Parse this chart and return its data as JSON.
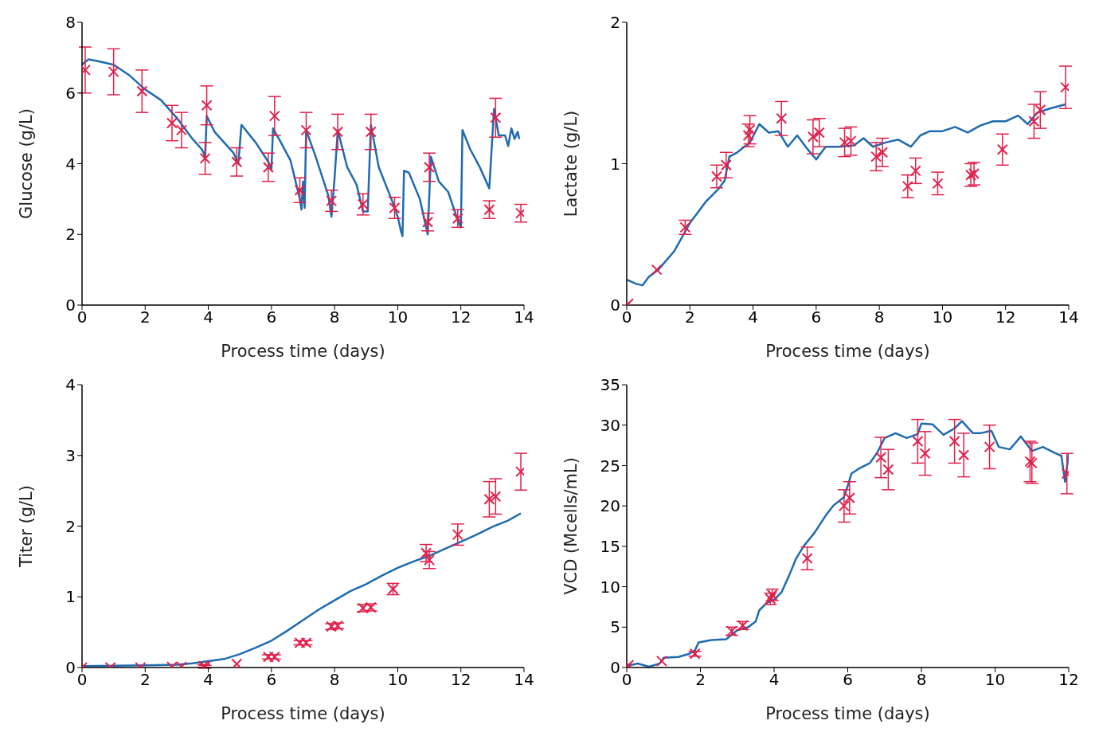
{
  "chart_data": [
    {
      "type": "line",
      "xlabel": "Process time (days)",
      "ylabel": "Glucose (g/L)",
      "xlim": [
        0,
        14
      ],
      "xticks": [
        0,
        2,
        4,
        6,
        8,
        10,
        12,
        14
      ],
      "ylim": [
        0,
        8
      ],
      "yticks": [
        0,
        2,
        4,
        6,
        8
      ],
      "series": [
        {
          "type": "line",
          "color": "#1f6bb0",
          "marker": "none",
          "x": [
            0,
            0.2,
            0.5,
            1,
            1.5,
            2,
            2.5,
            3,
            3.5,
            3.8,
            3.9,
            3.95,
            4.2,
            4.8,
            4.95,
            5.05,
            5.5,
            5.9,
            6.0,
            6.05,
            6.3,
            6.6,
            6.9,
            6.95,
            7.0,
            7.05,
            7.1,
            7.4,
            7.8,
            7.9,
            8.0,
            8.1,
            8.4,
            8.7,
            8.9,
            9.05,
            9.15,
            9.4,
            9.8,
            10,
            10.1,
            10.15,
            10.2,
            10.35,
            10.7,
            10.9,
            10.95,
            11.05,
            11.3,
            11.6,
            11.9,
            12.0,
            12.05,
            12.3,
            12.6,
            12.85,
            12.9,
            13.05,
            13.2,
            13.4,
            13.5,
            13.6,
            13.7,
            13.8,
            13.85
          ],
          "values": [
            6.8,
            6.95,
            6.9,
            6.8,
            6.5,
            6.1,
            5.8,
            5.3,
            4.7,
            4.4,
            4.2,
            5.35,
            4.9,
            4.3,
            4.0,
            5.1,
            4.6,
            4.05,
            3.85,
            5.0,
            4.6,
            4.1,
            3.0,
            2.7,
            3.5,
            2.75,
            4.95,
            4.2,
            3.1,
            2.5,
            3.6,
            4.95,
            3.9,
            3.4,
            2.65,
            2.65,
            5.1,
            3.9,
            3.0,
            2.5,
            2.1,
            1.95,
            3.8,
            3.75,
            3.0,
            2.2,
            2.0,
            4.2,
            3.5,
            3.2,
            2.4,
            2.2,
            4.95,
            4.4,
            3.9,
            3.4,
            3.3,
            5.55,
            4.8,
            4.8,
            4.5,
            5.0,
            4.7,
            4.9,
            4.7
          ]
        },
        {
          "type": "scatter",
          "color": "#e0204a",
          "marker": "cross",
          "x": [
            0.1,
            1,
            1.9,
            2.85,
            3.15,
            3.9,
            3.95,
            4.9,
            5.9,
            6.1,
            6.9,
            7.1,
            7.9,
            8.1,
            8.9,
            9.15,
            9.9,
            10.95,
            11,
            11.9,
            12.9,
            13.1,
            13.9
          ],
          "values": [
            6.65,
            6.6,
            6.05,
            5.15,
            4.95,
            4.15,
            5.65,
            4.05,
            3.9,
            5.35,
            3.25,
            4.95,
            2.95,
            4.9,
            2.85,
            4.9,
            2.75,
            2.35,
            3.9,
            2.45,
            2.7,
            5.3,
            2.6
          ],
          "errors": [
            0.65,
            0.65,
            0.6,
            0.5,
            0.5,
            0.45,
            0.55,
            0.4,
            0.4,
            0.55,
            0.35,
            0.5,
            0.3,
            0.5,
            0.3,
            0.5,
            0.3,
            0.25,
            0.4,
            0.25,
            0.25,
            0.55,
            0.25
          ]
        }
      ]
    },
    {
      "type": "line",
      "xlabel": "Process time (days)",
      "ylabel": "Lactate (g/L)",
      "xlim": [
        0,
        14
      ],
      "xticks": [
        0,
        2,
        4,
        6,
        8,
        10,
        12,
        14
      ],
      "ylim": [
        0,
        2
      ],
      "yticks": [
        0,
        1,
        2
      ],
      "series": [
        {
          "type": "line",
          "color": "#1f6bb0",
          "marker": "none",
          "x": [
            0,
            0.3,
            0.5,
            0.7,
            1,
            1.5,
            2,
            2.5,
            2.9,
            3.1,
            3.25,
            3.5,
            3.9,
            4.2,
            4.5,
            4.8,
            5.1,
            5.4,
            5.7,
            6.0,
            6.3,
            6.7,
            7.2,
            7.5,
            7.8,
            8.2,
            8.6,
            9.0,
            9.3,
            9.6,
            10,
            10.4,
            10.8,
            11.2,
            11.6,
            12,
            12.4,
            12.7,
            13,
            13.4,
            13.9
          ],
          "values": [
            0.18,
            0.15,
            0.14,
            0.2,
            0.25,
            0.38,
            0.58,
            0.73,
            0.82,
            0.88,
            1.05,
            1.08,
            1.15,
            1.28,
            1.22,
            1.23,
            1.12,
            1.2,
            1.11,
            1.03,
            1.12,
            1.12,
            1.13,
            1.18,
            1.12,
            1.15,
            1.17,
            1.12,
            1.2,
            1.23,
            1.23,
            1.26,
            1.22,
            1.27,
            1.3,
            1.3,
            1.34,
            1.28,
            1.36,
            1.39,
            1.42
          ]
        },
        {
          "type": "scatter",
          "color": "#e0204a",
          "marker": "cross",
          "x": [
            0.05,
            0.95,
            1.85,
            2.85,
            3.15,
            3.85,
            3.9,
            4.9,
            5.9,
            6.1,
            6.9,
            7.1,
            7.9,
            8.1,
            8.9,
            9.15,
            9.85,
            10.9,
            11,
            11.9,
            12.9,
            13.1,
            13.9
          ],
          "values": [
            0.01,
            0.25,
            0.55,
            0.91,
            0.99,
            1.2,
            1.24,
            1.32,
            1.19,
            1.22,
            1.15,
            1.16,
            1.05,
            1.08,
            0.84,
            0.95,
            0.86,
            0.92,
            0.93,
            1.1,
            1.3,
            1.38,
            1.54
          ],
          "errors": [
            null,
            null,
            0.05,
            0.08,
            0.09,
            0.08,
            0.1,
            0.12,
            0.12,
            0.1,
            0.1,
            0.1,
            0.1,
            0.1,
            0.08,
            0.09,
            0.08,
            0.08,
            0.08,
            0.11,
            0.12,
            0.13,
            0.15
          ]
        }
      ]
    },
    {
      "type": "line",
      "xlabel": "Process time (days)",
      "ylabel": "Titer (g/L)",
      "xlim": [
        0,
        14
      ],
      "xticks": [
        0,
        2,
        4,
        6,
        8,
        10,
        12,
        14
      ],
      "ylim": [
        0,
        4
      ],
      "yticks": [
        0,
        1,
        2,
        3,
        4
      ],
      "series": [
        {
          "type": "line",
          "color": "#1f6bb0",
          "marker": "none",
          "x": [
            0,
            2,
            3,
            3.5,
            4,
            4.5,
            5,
            5.5,
            6,
            6.5,
            7,
            7.5,
            8,
            8.5,
            9,
            9.5,
            10,
            10.5,
            11,
            11.5,
            12,
            12.5,
            13,
            13.5,
            13.9
          ],
          "values": [
            0.02,
            0.03,
            0.04,
            0.06,
            0.09,
            0.12,
            0.19,
            0.28,
            0.38,
            0.52,
            0.67,
            0.82,
            0.95,
            1.08,
            1.18,
            1.3,
            1.41,
            1.5,
            1.58,
            1.68,
            1.78,
            1.88,
            1.99,
            2.08,
            2.18
          ]
        },
        {
          "type": "scatter",
          "color": "#e0204a",
          "marker": "cross",
          "x": [
            0,
            0.9,
            1.85,
            2.85,
            3.15,
            3.85,
            3.9,
            4.9,
            5.9,
            6.1,
            6.9,
            7.1,
            7.9,
            8.1,
            8.9,
            9.15,
            9.85,
            10.9,
            11,
            11.9,
            12.9,
            13.1,
            13.9
          ],
          "values": [
            0,
            0,
            0,
            0.01,
            0.01,
            0.02,
            0.01,
            0.05,
            0.15,
            0.15,
            0.35,
            0.35,
            0.58,
            0.59,
            0.84,
            0.85,
            1.11,
            1.62,
            1.52,
            1.88,
            2.38,
            2.42,
            2.77
          ],
          "errors": [
            null,
            null,
            null,
            null,
            null,
            0.02,
            0.02,
            null,
            0.03,
            0.03,
            0.03,
            0.03,
            0.04,
            0.04,
            0.05,
            0.05,
            0.08,
            0.12,
            0.12,
            0.15,
            0.25,
            0.25,
            0.26
          ]
        }
      ]
    },
    {
      "type": "line",
      "xlabel": "Process time (days)",
      "ylabel": "VCD (Mcells/mL)",
      "xlim": [
        0,
        12
      ],
      "xticks": [
        0,
        2,
        4,
        6,
        8,
        10,
        12
      ],
      "ylim": [
        0,
        35
      ],
      "yticks": [
        0,
        5,
        10,
        15,
        20,
        25,
        30,
        35
      ],
      "series": [
        {
          "type": "line",
          "color": "#1f6bb0",
          "marker": "none",
          "x": [
            0,
            0.3,
            0.6,
            0.9,
            1,
            1.4,
            1.7,
            1.85,
            1.95,
            2.3,
            2.7,
            3.0,
            3.3,
            3.5,
            3.6,
            3.8,
            4.0,
            4.2,
            4.4,
            4.6,
            4.8,
            5.1,
            5.4,
            5.6,
            5.9,
            6.0,
            6.1,
            6.3,
            6.6,
            6.8,
            7.0,
            7.3,
            7.6,
            7.9,
            8.0,
            8.3,
            8.6,
            8.9,
            9.1,
            9.4,
            9.6,
            9.9,
            10.1,
            10.4,
            10.7,
            11.0,
            11.3,
            11.6,
            11.8,
            11.9,
            12.0
          ],
          "values": [
            0.2,
            0.5,
            0.1,
            0.5,
            1.2,
            1.3,
            1.7,
            2.1,
            3.1,
            3.4,
            3.5,
            4.6,
            5.0,
            5.7,
            7.1,
            8.0,
            8.4,
            9.3,
            11.3,
            13.5,
            15.0,
            16.7,
            18.8,
            20.0,
            21.1,
            22.5,
            24.0,
            24.6,
            25.3,
            26.6,
            28.4,
            29.0,
            28.4,
            28.9,
            30.2,
            30.1,
            28.8,
            29.6,
            30.5,
            29.0,
            29.0,
            29.3,
            27.3,
            27.0,
            28.6,
            26.8,
            27.3,
            26.6,
            26.2,
            23.0,
            26.5
          ]
        },
        {
          "type": "scatter",
          "color": "#e0204a",
          "marker": "cross",
          "x": [
            0.05,
            0.95,
            1.85,
            2.85,
            3.15,
            3.9,
            3.95,
            4.9,
            5.9,
            6.05,
            6.9,
            7.1,
            7.9,
            8.1,
            8.9,
            9.15,
            9.85,
            10.95,
            11,
            11.95
          ],
          "values": [
            0.3,
            0.8,
            1.7,
            4.5,
            5.2,
            8.5,
            9,
            13.5,
            20,
            21,
            26,
            24.5,
            28,
            26.5,
            28,
            26.3,
            27.3,
            25.5,
            25.3,
            24
          ],
          "errors": [
            null,
            null,
            0.3,
            0.5,
            0.5,
            0.7,
            0.7,
            1.4,
            2,
            2,
            2.5,
            2.5,
            2.7,
            2.7,
            2.7,
            2.7,
            2.7,
            2.5,
            2.5,
            2.5
          ]
        }
      ]
    }
  ]
}
